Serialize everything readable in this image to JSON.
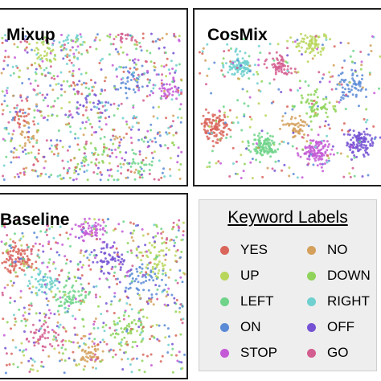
{
  "chart_data": [
    {
      "type": "scatter",
      "title": "Mixup",
      "xlabel": "",
      "ylabel": "",
      "grid": false
    },
    {
      "type": "scatter",
      "title": "CosMix",
      "xlabel": "",
      "ylabel": "",
      "grid": false
    },
    {
      "type": "scatter",
      "title": "Baseline",
      "xlabel": "",
      "ylabel": "",
      "grid": false
    }
  ],
  "legend": {
    "title": "Keyword Labels",
    "items": [
      {
        "label": "YES",
        "color": "#d9655b"
      },
      {
        "label": "NO",
        "color": "#d4a05c"
      },
      {
        "label": "UP",
        "color": "#b8d65a"
      },
      {
        "label": "DOWN",
        "color": "#8fd35a"
      },
      {
        "label": "LEFT",
        "color": "#6fd38a"
      },
      {
        "label": "RIGHT",
        "color": "#6fd0cf"
      },
      {
        "label": "ON",
        "color": "#5b8bd6"
      },
      {
        "label": "OFF",
        "color": "#7552d4"
      },
      {
        "label": "STOP",
        "color": "#c45ad6"
      },
      {
        "label": "GO",
        "color": "#d35d8f"
      }
    ]
  }
}
